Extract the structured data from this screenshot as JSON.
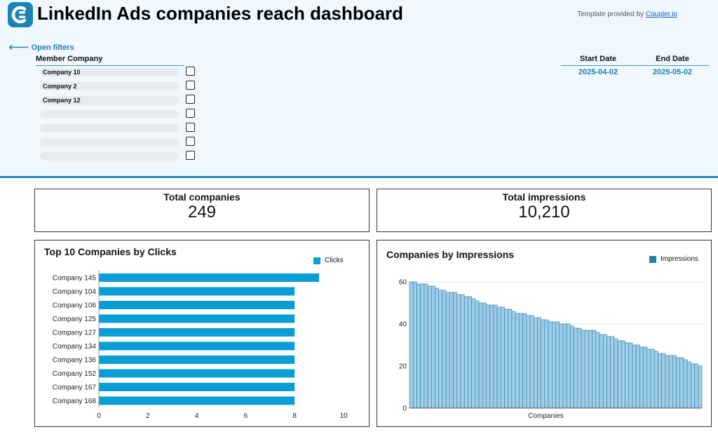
{
  "header": {
    "title": "LinkedIn Ads companies reach dashboard",
    "credit_prefix": "Template provided by ",
    "credit_link": "Coupler.io",
    "logo_icon": "coupler-logo-icon",
    "open_filters": "Open filters",
    "open_filters_icon": "arrow-left-icon"
  },
  "filters": {
    "member_company_label": "Member Company",
    "companies": [
      "Company 10",
      "Company 2",
      "Company 12",
      "",
      "",
      "",
      ""
    ],
    "start_date_label": "Start Date",
    "start_date": "2025-04-02",
    "end_date_label": "End Date",
    "end_date": "2025-05-02"
  },
  "kpis": {
    "total_companies_label": "Total companies",
    "total_companies": "249",
    "total_impressions_label": "Total impressions",
    "total_impressions": "10,210"
  },
  "colors": {
    "accent": "#1a8fc4",
    "bar_clicks": "#0a9ed6",
    "bar_impressions": "#2a7fa8",
    "header_bg": "#f0f8fd"
  },
  "chart_data": [
    {
      "type": "bar",
      "orientation": "horizontal",
      "title": "Top 10 Companies by Clicks",
      "categories": [
        "Company 145",
        "Company 104",
        "Company 106",
        "Company 125",
        "Company 127",
        "Company 134",
        "Company 136",
        "Company 152",
        "Company 167",
        "Company 168"
      ],
      "series": [
        {
          "name": "Clicks",
          "values": [
            9,
            8,
            8,
            8,
            8,
            8,
            8,
            8,
            8,
            8
          ]
        }
      ],
      "xlim": [
        0,
        10
      ],
      "xticks": [
        0,
        2,
        4,
        6,
        8,
        10
      ],
      "legend": "top-right",
      "grid": false
    },
    {
      "type": "bar",
      "title": "Companies by Impressions",
      "xlabel": "Companies",
      "series": [
        {
          "name": "Impressions",
          "values": [
            60,
            60,
            59,
            59,
            59,
            58,
            58,
            57,
            56,
            56,
            55,
            55,
            55,
            54,
            54,
            53,
            53,
            52,
            51,
            50,
            50,
            49,
            49,
            49,
            48,
            48,
            47,
            47,
            46,
            45,
            45,
            45,
            44,
            44,
            43,
            43,
            42,
            42,
            41,
            41,
            41,
            40,
            40,
            40,
            39,
            38,
            38,
            37,
            37,
            37,
            37,
            36,
            35,
            35,
            34,
            34,
            33,
            32,
            32,
            31,
            31,
            30,
            30,
            29,
            29,
            28,
            28,
            27,
            26,
            26,
            25,
            25,
            25,
            24,
            24,
            23,
            22,
            21,
            21,
            20
          ]
        }
      ],
      "ylim": [
        0,
        60
      ],
      "yticks": [
        0,
        20,
        40,
        60
      ],
      "legend": "top-right",
      "grid": true
    }
  ]
}
